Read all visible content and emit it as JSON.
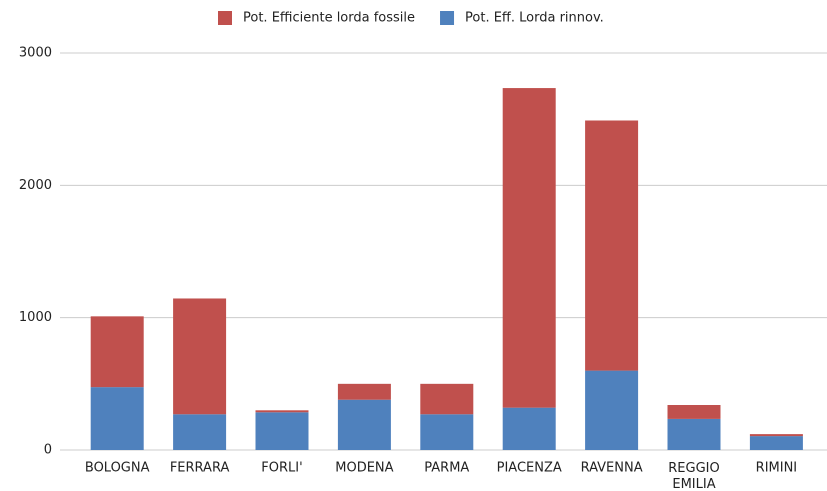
{
  "chart_data": {
    "type": "stacked_bar",
    "categories": [
      "BOLOGNA",
      "FERRARA",
      "FORLI'",
      "MODENA",
      "PARMA",
      "PIACENZA",
      "RAVENNA",
      "REGGIO EMILIA",
      "RIMINI"
    ],
    "series": [
      {
        "name": "Pot. Efficiente lorda fossile",
        "color": "#c0504d",
        "values": [
          535,
          875,
          15,
          120,
          230,
          2415,
          1890,
          105,
          15
        ]
      },
      {
        "name": "Pot. Eff. Lorda rinnov.",
        "color": "#4f81bd",
        "values": [
          475,
          270,
          285,
          380,
          270,
          320,
          600,
          235,
          105
        ]
      }
    ],
    "ylim": [
      0,
      3000
    ],
    "yticks": [
      0,
      1000,
      2000,
      3000
    ],
    "grid": true,
    "legend": "top"
  }
}
